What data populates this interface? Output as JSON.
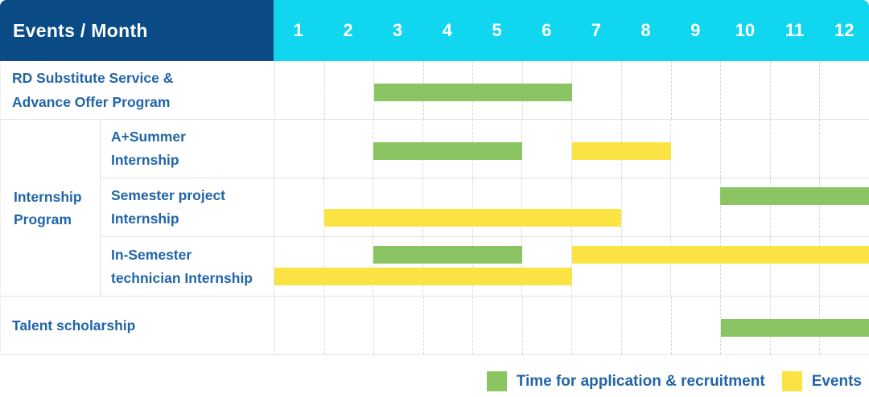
{
  "header": {
    "title": "Events / Month",
    "months": [
      "1",
      "2",
      "3",
      "4",
      "5",
      "6",
      "7",
      "8",
      "9",
      "10",
      "11",
      "12"
    ]
  },
  "colors": {
    "header_bg": "#0a4b85",
    "months_bg": "#10d6f0",
    "green": "#8bc563",
    "yellow": "#fce344",
    "label_text": "#2165a8"
  },
  "chart_data": {
    "type": "gantt",
    "x_axis": {
      "label": "Month",
      "ticks": [
        "1",
        "2",
        "3",
        "4",
        "5",
        "6",
        "7",
        "8",
        "9",
        "10",
        "11",
        "12"
      ],
      "range": [
        1,
        12
      ]
    },
    "group": {
      "label_lines": [
        "Internship",
        "Program"
      ]
    },
    "rows": {
      "rd": {
        "label_lines": [
          "RD Substitute Service &",
          "Advance Offer Program"
        ],
        "bars": {
          "application": {
            "color": "green",
            "start": 3,
            "end": 6,
            "track": "center"
          }
        }
      },
      "a_summer": {
        "label_lines": [
          "A+Summer",
          "Internship"
        ],
        "bars": {
          "application": {
            "color": "green",
            "start": 3,
            "end": 5,
            "track": "center"
          },
          "events": {
            "color": "yellow",
            "start": 7,
            "end": 8,
            "track": "center"
          }
        }
      },
      "semester_project": {
        "label_lines": [
          "Semester project",
          "Internship"
        ],
        "bars": {
          "application": {
            "color": "green",
            "start": 10,
            "end": 12,
            "track": "top"
          },
          "events": {
            "color": "yellow",
            "start": 2,
            "end": 7,
            "track": "bottom"
          }
        }
      },
      "in_semester": {
        "label_lines": [
          "In-Semester",
          "technician Internship"
        ],
        "bars": {
          "application": {
            "color": "green",
            "start": 3,
            "end": 5,
            "track": "top"
          },
          "events_late": {
            "color": "yellow",
            "start": 7,
            "end": 12,
            "track": "top"
          },
          "events_early": {
            "color": "yellow",
            "start": 1,
            "end": 6,
            "track": "bottom"
          }
        }
      },
      "talent": {
        "label_lines": [
          "Talent scholarship"
        ],
        "bars": {
          "application": {
            "color": "green",
            "start": 10,
            "end": 12,
            "track": "center"
          }
        }
      }
    },
    "legend": [
      {
        "color": "green",
        "label": "Time for application & recruitment"
      },
      {
        "color": "yellow",
        "label": "Events"
      }
    ]
  }
}
